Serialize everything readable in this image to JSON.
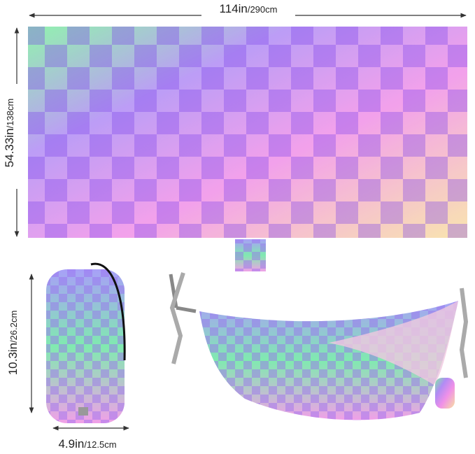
{
  "dimensions": [
    {
      "main": "114in",
      "sub": "/290cm"
    },
    {
      "main": "54.33in",
      "sub": "/138cm"
    },
    {
      "main": "10.3in",
      "sub": "/26.2cm"
    },
    {
      "main": "4.9in",
      "sub": "/12.5cm"
    }
  ]
}
